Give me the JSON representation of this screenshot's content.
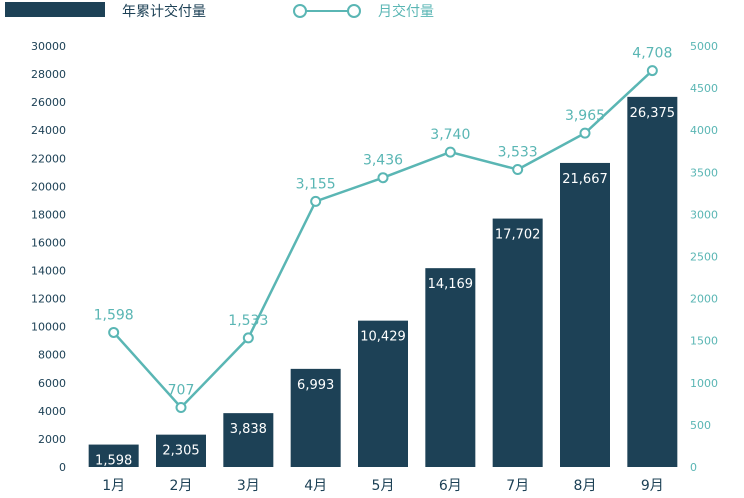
{
  "chart_data": {
    "type": "bar",
    "categories": [
      "1月",
      "2月",
      "3月",
      "4月",
      "5月",
      "6月",
      "7月",
      "8月",
      "9月"
    ],
    "series": [
      {
        "name": "年累计交付量",
        "type": "bar",
        "axis": "left",
        "values": [
          1598,
          2305,
          3838,
          6993,
          10429,
          14169,
          17702,
          21667,
          26375
        ],
        "labels": [
          "1,598",
          "2,305",
          "3,838",
          "6,993",
          "10,429",
          "14,169",
          "17,702",
          "21,667",
          "26,375"
        ],
        "color": "#1d4156"
      },
      {
        "name": "月交付量",
        "type": "line",
        "axis": "right",
        "values": [
          1598,
          707,
          1533,
          3155,
          3436,
          3740,
          3533,
          3965,
          4708
        ],
        "labels": [
          "1,598",
          "707",
          "1,533",
          "3,155",
          "3,436",
          "3,740",
          "3,533",
          "3,965",
          "4,708"
        ],
        "color": "#5ab6b4"
      }
    ],
    "y_left": {
      "range": [
        0,
        30000
      ],
      "ticks": [
        "0",
        "2000",
        "4000",
        "6000",
        "8000",
        "10000",
        "12000",
        "14000",
        "16000",
        "18000",
        "20000",
        "22000",
        "24000",
        "26000",
        "28000",
        "30000"
      ]
    },
    "y_right": {
      "range": [
        0,
        5000
      ],
      "ticks": [
        "0",
        "500",
        "1000",
        "1500",
        "2000",
        "2500",
        "3000",
        "3500",
        "4000",
        "4500",
        "5000"
      ]
    },
    "legend": {
      "position": "top-left",
      "items": [
        "年累计交付量",
        "月交付量"
      ]
    },
    "grid": false
  }
}
